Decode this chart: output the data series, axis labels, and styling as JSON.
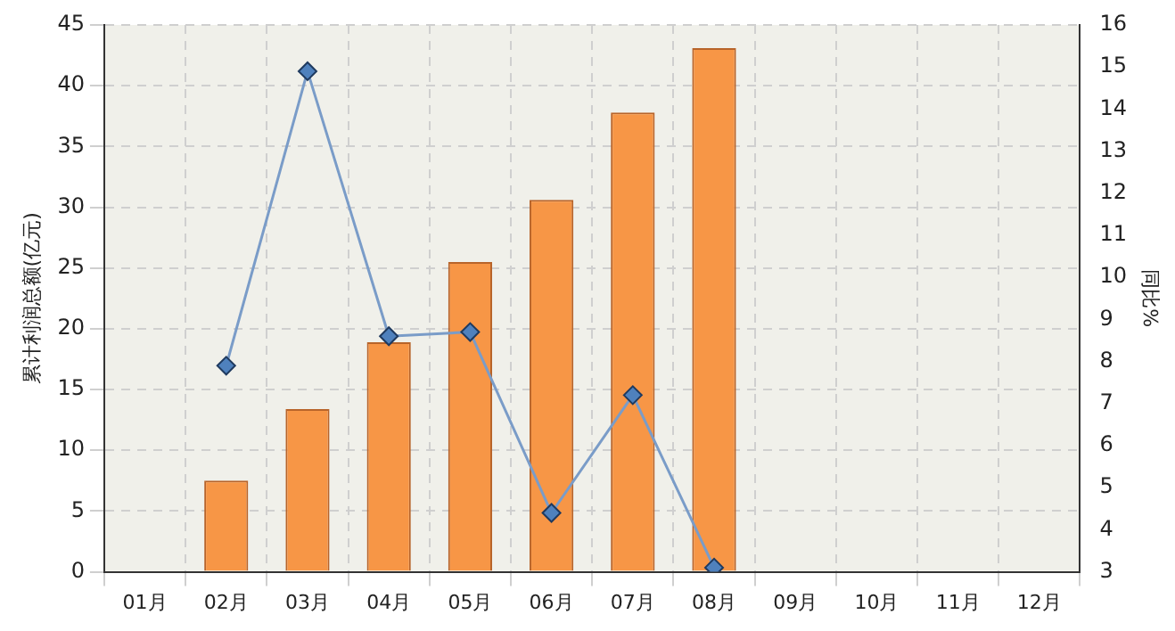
{
  "chart_data": {
    "type": "bar",
    "ylabel": "累计利润总额(亿元)",
    "y2label": "同比%",
    "categories": [
      "01月",
      "02月",
      "03月",
      "04月",
      "05月",
      "06月",
      "07月",
      "08月",
      "09月",
      "10月",
      "11月",
      "12月"
    ],
    "series": [
      {
        "color": "#f79646",
        "values": [
          null,
          7.5,
          13.4,
          18.9,
          25.5,
          30.6,
          37.8,
          43.1,
          null,
          null,
          null,
          null
        ]
      },
      {
        "type": "line",
        "axis": "y2",
        "color": "#4f81bd",
        "marker": "diamond",
        "values": [
          null,
          7.9,
          14.9,
          8.6,
          8.7,
          4.4,
          7.2,
          3.1,
          null,
          null,
          null,
          null
        ]
      }
    ],
    "ylim": [
      0,
      45
    ],
    "yticks": [
      0,
      5,
      10,
      15,
      20,
      25,
      30,
      35,
      40,
      45
    ],
    "y2lim": [
      3,
      16
    ],
    "y2ticks": [
      3,
      4,
      5,
      6,
      7,
      8,
      9,
      10,
      11,
      12,
      13,
      14,
      15,
      16
    ],
    "grid": true,
    "legend": false
  }
}
